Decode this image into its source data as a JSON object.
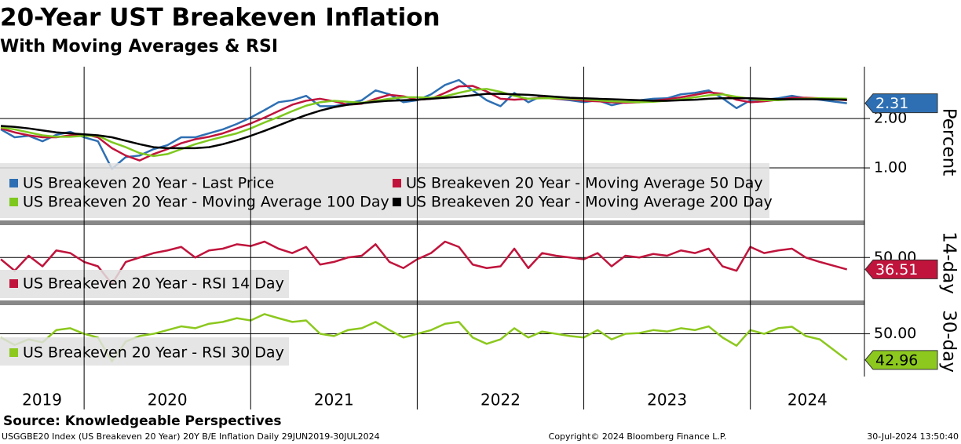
{
  "chart_data": [
    {
      "type": "line",
      "title": "20-Year UST Breakeven Inflation",
      "subtitle": "With Moving Averages & RSI",
      "y_label": "Percent",
      "x": [
        2019.5,
        2019.583,
        2019.667,
        2019.75,
        2019.833,
        2019.917,
        2020,
        2020.083,
        2020.167,
        2020.25,
        2020.333,
        2020.417,
        2020.5,
        2020.583,
        2020.667,
        2020.75,
        2020.833,
        2020.917,
        2021,
        2021.083,
        2021.167,
        2021.25,
        2021.333,
        2021.417,
        2021.5,
        2021.583,
        2021.667,
        2021.75,
        2021.833,
        2021.917,
        2022,
        2022.083,
        2022.167,
        2022.25,
        2022.333,
        2022.417,
        2022.5,
        2022.583,
        2022.667,
        2022.75,
        2022.833,
        2022.917,
        2023,
        2023.083,
        2023.167,
        2023.25,
        2023.333,
        2023.417,
        2023.5,
        2023.583,
        2023.667,
        2023.75,
        2023.833,
        2023.917,
        2024,
        2024.083,
        2024.167,
        2024.25,
        2024.333,
        2024.417,
        2024.58
      ],
      "xlim": [
        2019.495,
        2024.685
      ],
      "ylim": [
        0,
        3.05
      ],
      "yticks": [
        {
          "value": 1,
          "label": "1.00"
        },
        {
          "value": 2,
          "label": "2.00"
        }
      ],
      "grid": true,
      "legend": "lower left",
      "series": [
        {
          "name": "US Breakeven 20 Year - Last Price",
          "color": "#2e6fb3",
          "values": [
            1.78,
            1.62,
            1.65,
            1.54,
            1.67,
            1.73,
            1.62,
            1.54,
            0.98,
            1.22,
            1.25,
            1.38,
            1.46,
            1.62,
            1.62,
            1.7,
            1.78,
            1.89,
            2.02,
            2.17,
            2.33,
            2.37,
            2.46,
            2.25,
            2.25,
            2.3,
            2.37,
            2.57,
            2.49,
            2.33,
            2.37,
            2.49,
            2.68,
            2.78,
            2.57,
            2.37,
            2.25,
            2.52,
            2.33,
            2.46,
            2.4,
            2.37,
            2.33,
            2.37,
            2.27,
            2.33,
            2.37,
            2.4,
            2.41,
            2.49,
            2.52,
            2.57,
            2.41,
            2.21,
            2.37,
            2.38,
            2.41,
            2.46,
            2.41,
            2.38,
            2.31
          ]
        },
        {
          "name": "US Breakeven 20 Year - Moving Average 50 Day",
          "color": "#c0143c",
          "values": [
            1.8,
            1.72,
            1.66,
            1.62,
            1.62,
            1.66,
            1.68,
            1.62,
            1.4,
            1.25,
            1.15,
            1.28,
            1.38,
            1.5,
            1.58,
            1.63,
            1.7,
            1.8,
            1.9,
            2.02,
            2.15,
            2.28,
            2.36,
            2.4,
            2.35,
            2.28,
            2.3,
            2.4,
            2.48,
            2.45,
            2.38,
            2.4,
            2.52,
            2.65,
            2.66,
            2.55,
            2.4,
            2.38,
            2.4,
            2.42,
            2.4,
            2.39,
            2.36,
            2.35,
            2.33,
            2.32,
            2.33,
            2.36,
            2.39,
            2.43,
            2.48,
            2.53,
            2.5,
            2.38,
            2.33,
            2.35,
            2.38,
            2.42,
            2.42,
            2.41,
            2.37
          ]
        },
        {
          "name": "US Breakeven 20 Year - Moving Average 100 Day",
          "color": "#7ec81e",
          "values": [
            1.82,
            1.78,
            1.72,
            1.66,
            1.63,
            1.63,
            1.65,
            1.65,
            1.52,
            1.42,
            1.3,
            1.24,
            1.28,
            1.38,
            1.48,
            1.56,
            1.63,
            1.7,
            1.8,
            1.92,
            2.03,
            2.15,
            2.26,
            2.33,
            2.36,
            2.34,
            2.32,
            2.36,
            2.4,
            2.43,
            2.43,
            2.42,
            2.45,
            2.52,
            2.58,
            2.6,
            2.54,
            2.46,
            2.4,
            2.41,
            2.41,
            2.4,
            2.39,
            2.37,
            2.35,
            2.34,
            2.33,
            2.34,
            2.36,
            2.39,
            2.43,
            2.47,
            2.49,
            2.44,
            2.4,
            2.37,
            2.37,
            2.39,
            2.4,
            2.41,
            2.4
          ]
        },
        {
          "name": "US Breakeven 20 Year - Moving Average 200 Day",
          "color": "#000000",
          "values": [
            1.85,
            1.83,
            1.8,
            1.76,
            1.72,
            1.7,
            1.68,
            1.66,
            1.62,
            1.55,
            1.48,
            1.42,
            1.4,
            1.4,
            1.4,
            1.42,
            1.48,
            1.56,
            1.65,
            1.75,
            1.86,
            1.97,
            2.07,
            2.16,
            2.23,
            2.28,
            2.31,
            2.34,
            2.36,
            2.37,
            2.38,
            2.4,
            2.42,
            2.44,
            2.47,
            2.5,
            2.5,
            2.49,
            2.48,
            2.46,
            2.44,
            2.42,
            2.41,
            2.4,
            2.39,
            2.38,
            2.37,
            2.36,
            2.36,
            2.37,
            2.38,
            2.4,
            2.41,
            2.41,
            2.41,
            2.4,
            2.39,
            2.39,
            2.39,
            2.39,
            2.38
          ]
        }
      ]
    },
    {
      "type": "line",
      "y_label": "14-day",
      "x": [
        2019.5,
        2019.583,
        2019.667,
        2019.75,
        2019.833,
        2019.917,
        2020,
        2020.083,
        2020.167,
        2020.25,
        2020.333,
        2020.417,
        2020.5,
        2020.583,
        2020.667,
        2020.75,
        2020.833,
        2020.917,
        2021,
        2021.083,
        2021.167,
        2021.25,
        2021.333,
        2021.417,
        2021.5,
        2021.583,
        2021.667,
        2021.75,
        2021.833,
        2021.917,
        2022,
        2022.083,
        2022.167,
        2022.25,
        2022.333,
        2022.417,
        2022.5,
        2022.583,
        2022.667,
        2022.75,
        2022.833,
        2022.917,
        2023,
        2023.083,
        2023.167,
        2023.25,
        2023.333,
        2023.417,
        2023.5,
        2023.583,
        2023.667,
        2023.75,
        2023.833,
        2023.917,
        2024,
        2024.083,
        2024.167,
        2024.25,
        2024.333,
        2024.417,
        2024.58
      ],
      "xlim": [
        2019.495,
        2024.685
      ],
      "ylim": [
        4,
        84
      ],
      "yticks": [
        {
          "value": 50,
          "label": "50.00"
        }
      ],
      "grid": true,
      "legend": "lower left",
      "series": [
        {
          "name": "US Breakeven 20 Year - RSI 14 Day",
          "color": "#c0143c",
          "values": [
            48,
            35,
            52,
            40,
            58,
            55,
            45,
            40,
            20,
            45,
            50,
            55,
            58,
            62,
            50,
            58,
            60,
            65,
            63,
            68,
            60,
            55,
            62,
            42,
            45,
            50,
            52,
            65,
            45,
            38,
            48,
            55,
            68,
            62,
            42,
            38,
            40,
            60,
            38,
            55,
            52,
            50,
            48,
            55,
            40,
            52,
            50,
            54,
            52,
            58,
            55,
            60,
            40,
            35,
            62,
            55,
            58,
            60,
            50,
            45,
            36.51
          ]
        }
      ]
    },
    {
      "type": "line",
      "y_label": "30-day",
      "x": [
        2019.5,
        2019.583,
        2019.667,
        2019.75,
        2019.833,
        2019.917,
        2020,
        2020.083,
        2020.167,
        2020.25,
        2020.333,
        2020.417,
        2020.5,
        2020.583,
        2020.667,
        2020.75,
        2020.833,
        2020.917,
        2021,
        2021.083,
        2021.167,
        2021.25,
        2021.333,
        2021.417,
        2021.5,
        2021.583,
        2021.667,
        2021.75,
        2021.833,
        2021.917,
        2022,
        2022.083,
        2022.167,
        2022.25,
        2022.333,
        2022.417,
        2022.5,
        2022.583,
        2022.667,
        2022.75,
        2022.833,
        2022.917,
        2023,
        2023.083,
        2023.167,
        2023.25,
        2023.333,
        2023.417,
        2023.5,
        2023.583,
        2023.667,
        2023.75,
        2023.833,
        2023.917,
        2024,
        2024.083,
        2024.167,
        2024.25,
        2024.333,
        2024.417,
        2024.58
      ],
      "xlim": [
        2019.495,
        2024.685
      ],
      "ylim": [
        38.5,
        57.5
      ],
      "yticks": [
        {
          "value": 50,
          "label": "50.00"
        }
      ],
      "grid": true,
      "legend": "lower left",
      "xticks": [
        {
          "value": 2019,
          "label": "2019"
        },
        {
          "value": 2020,
          "label": "2020"
        },
        {
          "value": 2021,
          "label": "2021"
        },
        {
          "value": 2022,
          "label": "2022"
        },
        {
          "value": 2023,
          "label": "2023"
        },
        {
          "value": 2024,
          "label": "2024"
        }
      ],
      "series": [
        {
          "name": "US Breakeven 20 Year - RSI 30 Day",
          "color": "#8cc81e",
          "values": [
            49,
            47,
            48.5,
            47.7,
            51,
            51.5,
            50,
            49,
            42.6,
            47.9,
            49.4,
            50,
            51,
            52,
            51.5,
            52.7,
            53.2,
            54.2,
            53.6,
            55.3,
            54.2,
            53.2,
            53.6,
            50,
            49.4,
            51,
            51.5,
            53.2,
            51,
            49,
            50,
            51,
            52.7,
            53.2,
            49,
            47.3,
            48.5,
            51.5,
            49,
            50.6,
            50,
            49.4,
            49,
            51,
            48.5,
            50,
            50.2,
            51,
            50.6,
            51.5,
            51,
            52,
            49,
            46.8,
            51,
            50,
            51.5,
            51.9,
            49.4,
            48.5,
            42.96
          ]
        }
      ]
    }
  ],
  "source": "Source: Knowledgeable Perspectives",
  "footer": {
    "description": "USGGBE20 Index (US Breakeven 20 Year) 20Y B/E Inflation  Daily 29JUN2019-30JUL2024",
    "copyright": "Copyright© 2024 Bloomberg Finance L.P.",
    "timestamp": "30-Jul-2024 13:50:40"
  }
}
